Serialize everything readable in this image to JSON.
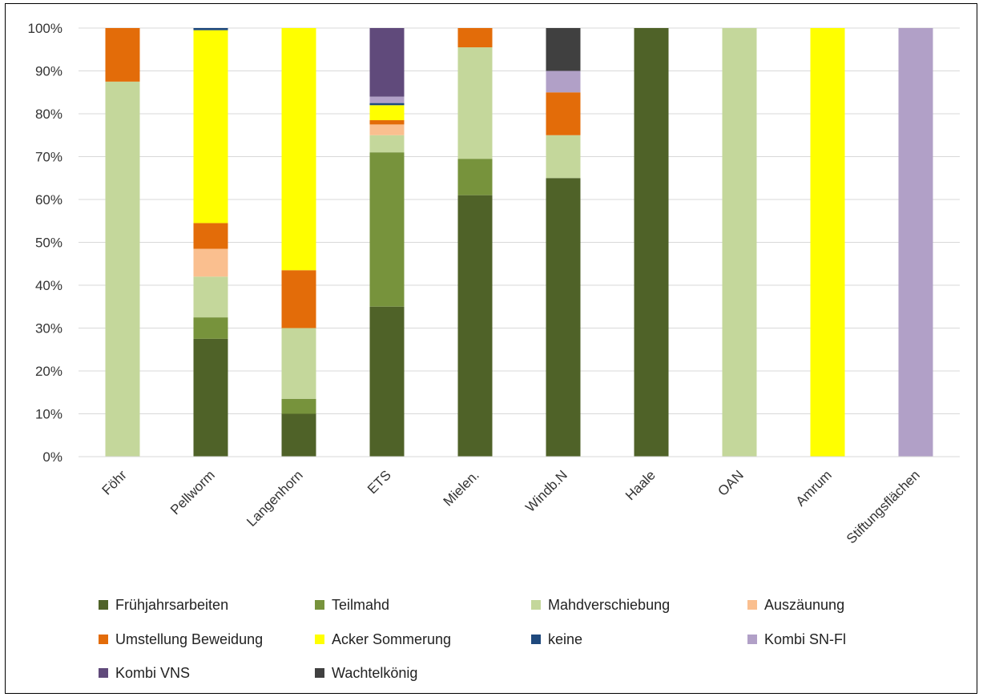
{
  "chart_data": {
    "type": "bar",
    "stacked": true,
    "percent": true,
    "title": "",
    "xlabel": "",
    "ylabel": "",
    "ylim": [
      0,
      100
    ],
    "yticks": [
      "0%",
      "10%",
      "20%",
      "30%",
      "40%",
      "50%",
      "60%",
      "70%",
      "80%",
      "90%",
      "100%"
    ],
    "grid": "horizontal",
    "legend_position": "bottom",
    "categories": [
      "Föhr",
      "Pellworm",
      "Langenhorn",
      "ETS",
      "Mielen.",
      "Windb.N",
      "Haale",
      "OAN",
      "Amrum",
      "Stiftungsflächen"
    ],
    "series": [
      {
        "name": "Frühjahrsarbeiten",
        "color": "#4f6228",
        "values": [
          0,
          27.5,
          10,
          35,
          61,
          65,
          100,
          0,
          0,
          0
        ]
      },
      {
        "name": "Teilmahd",
        "color": "#77933c",
        "values": [
          0,
          5,
          3.5,
          36,
          8.5,
          0,
          0,
          0,
          0,
          0
        ]
      },
      {
        "name": "Mahdverschiebung",
        "color": "#c4d79b",
        "values": [
          87.5,
          9.5,
          16.5,
          4,
          26,
          10,
          0,
          100,
          0,
          0
        ]
      },
      {
        "name": "Auszäunung",
        "color": "#fabf8f",
        "values": [
          0,
          6.5,
          0,
          2.5,
          0,
          0,
          0,
          0,
          0,
          0
        ]
      },
      {
        "name": "Umstellung Beweidung",
        "color": "#e36c09",
        "values": [
          12.5,
          6,
          13.5,
          1,
          4.5,
          10,
          0,
          0,
          0,
          0
        ]
      },
      {
        "name": "Acker Sommerung",
        "color": "#ffff00",
        "values": [
          0,
          45,
          56.5,
          3.5,
          0,
          0,
          0,
          0,
          100,
          0
        ]
      },
      {
        "name": "keine",
        "color": "#1f497d",
        "values": [
          0,
          0.5,
          0,
          0.5,
          0,
          0,
          0,
          0,
          0,
          0
        ]
      },
      {
        "name": "Kombi SN-Fl",
        "color": "#b1a0c7",
        "values": [
          0,
          0,
          0,
          1.5,
          0,
          5,
          0,
          0,
          0,
          100
        ]
      },
      {
        "name": "Kombi VNS",
        "color": "#604a7b",
        "values": [
          0,
          0,
          0,
          16,
          0,
          0,
          0,
          0,
          0,
          0
        ]
      },
      {
        "name": "Wachtelkönig",
        "color": "#404040",
        "values": [
          0,
          0,
          0,
          0,
          0,
          10,
          0,
          0,
          0,
          0
        ]
      }
    ]
  }
}
